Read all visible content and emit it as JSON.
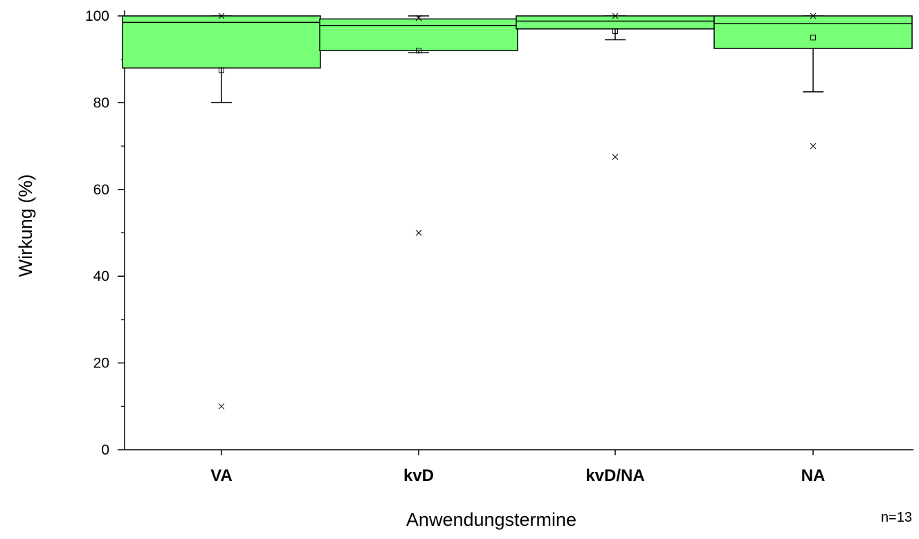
{
  "chart_data": {
    "type": "box",
    "categories": [
      "VA",
      "kvD",
      "kvD/NA",
      "NA"
    ],
    "xlabel": "Anwendungstermine",
    "ylabel": "Wirkung (%)",
    "ylim": [
      0,
      100
    ],
    "yticks": [
      0,
      20,
      40,
      60,
      80,
      100
    ],
    "grid": false,
    "box_color": "#77ff77",
    "annotation": "n=13",
    "boxes": [
      {
        "category": "VA",
        "q1": 88.0,
        "median": 98.5,
        "q3": 100,
        "whisker_low": 80.0,
        "whisker_high": 100,
        "mean": 87.5,
        "extremes": [
          10,
          100
        ]
      },
      {
        "category": "kvD",
        "q1": 92.0,
        "median": 97.8,
        "q3": 99.3,
        "whisker_low": 91.5,
        "whisker_high": 100,
        "mean": 92.0,
        "extremes": [
          50,
          99.5
        ]
      },
      {
        "category": "kvD/NA",
        "q1": 97.0,
        "median": 98.8,
        "q3": 100,
        "whisker_low": 94.5,
        "whisker_high": 100,
        "mean": 96.5,
        "extremes": [
          67.5,
          100
        ]
      },
      {
        "category": "NA",
        "q1": 92.5,
        "median": 98.2,
        "q3": 100,
        "whisker_low": 82.5,
        "whisker_high": 100,
        "mean": 95.0,
        "extremes": [
          70,
          100
        ]
      }
    ]
  }
}
